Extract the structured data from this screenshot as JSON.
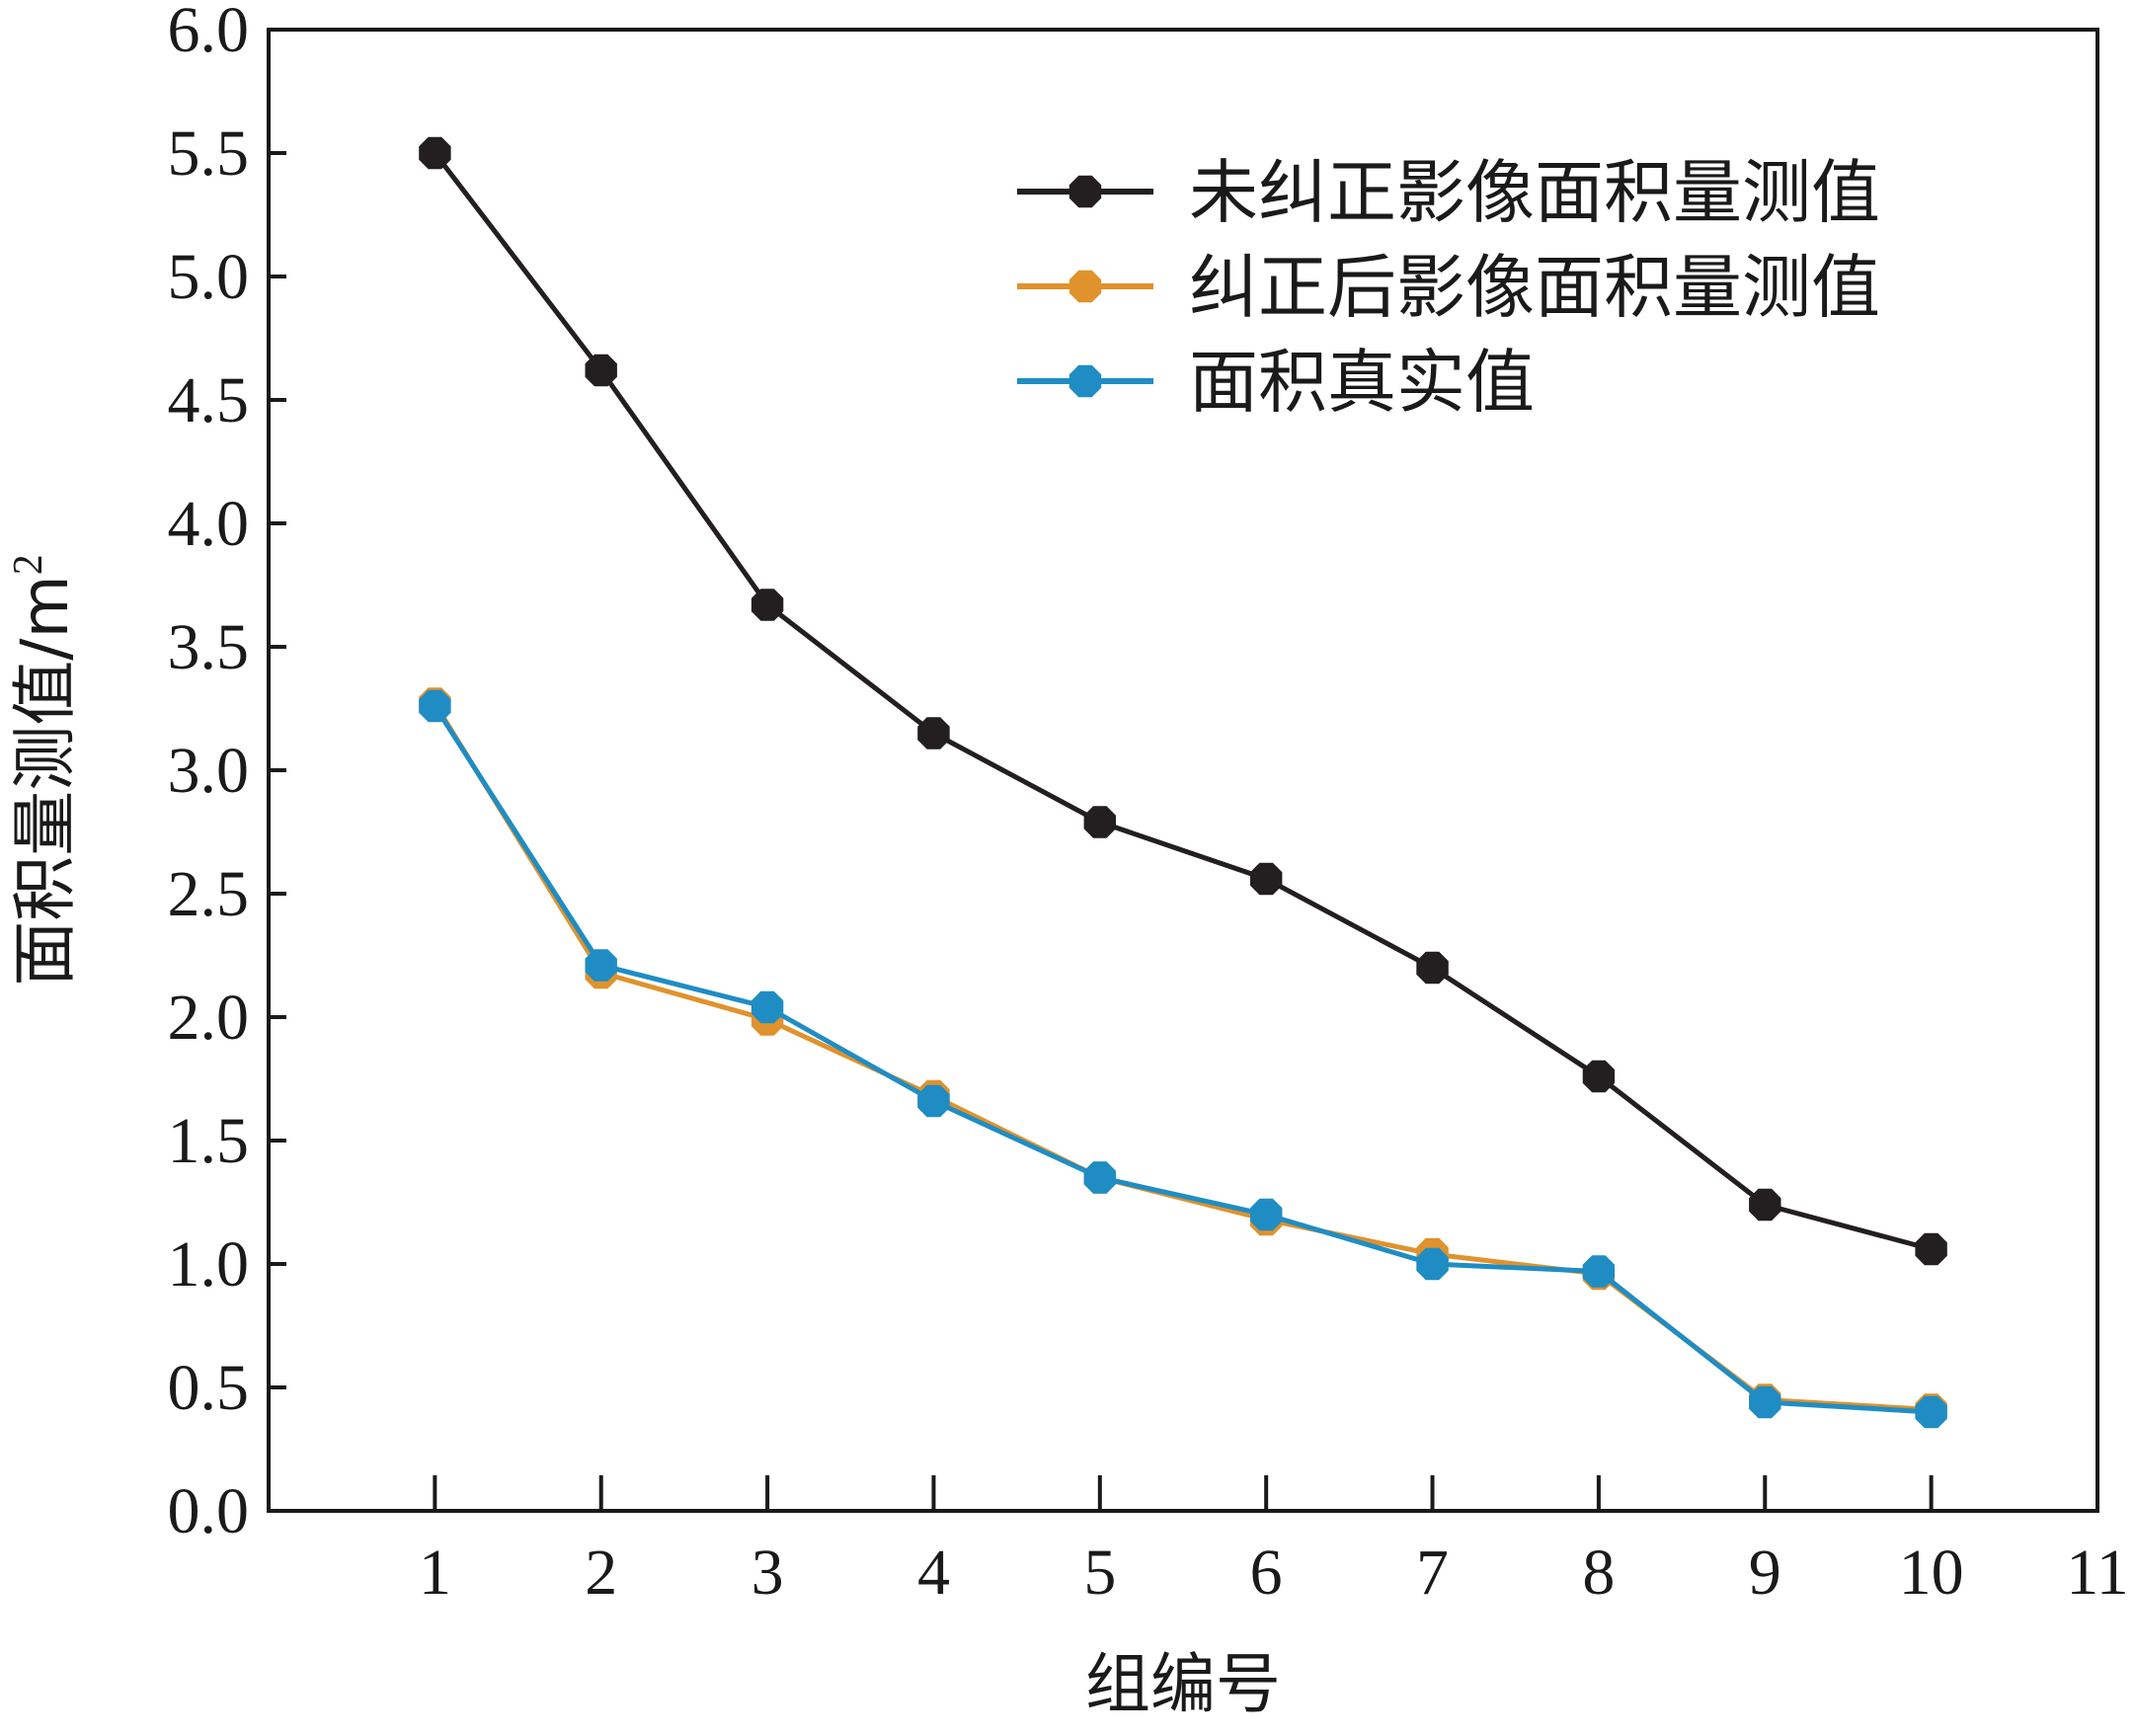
{
  "chart_data": {
    "type": "line",
    "x": [
      1,
      2,
      3,
      4,
      5,
      6,
      7,
      8,
      9,
      10
    ],
    "xlim": [
      0,
      11
    ],
    "ylim": [
      0,
      6
    ],
    "xticks": [
      "1",
      "2",
      "3",
      "4",
      "5",
      "6",
      "7",
      "8",
      "9",
      "10",
      "11"
    ],
    "yticks": [
      "0.0",
      "0.5",
      "1.0",
      "1.5",
      "2.0",
      "2.5",
      "3.0",
      "3.5",
      "4.0",
      "4.5",
      "5.0",
      "5.5",
      "6.0"
    ],
    "xlabel": "组编号",
    "ylabel": "面积量测值/m",
    "ylabel_superscript": "2",
    "legend_position": "top-right",
    "grid": false,
    "series": [
      {
        "name": "未纠正影像面积量测值",
        "color": "#231f20",
        "values": [
          5.5,
          4.62,
          3.67,
          3.15,
          2.79,
          2.56,
          2.2,
          1.76,
          1.24,
          1.06
        ]
      },
      {
        "name": "纠正后影像面积量测值",
        "color": "#e0922c",
        "values": [
          3.27,
          2.18,
          1.99,
          1.68,
          1.35,
          1.18,
          1.04,
          0.96,
          0.45,
          0.41
        ]
      },
      {
        "name": "面积真实值",
        "color": "#1f8dc4",
        "values": [
          3.26,
          2.21,
          2.04,
          1.66,
          1.35,
          1.2,
          1.0,
          0.97,
          0.44,
          0.4
        ]
      }
    ]
  }
}
